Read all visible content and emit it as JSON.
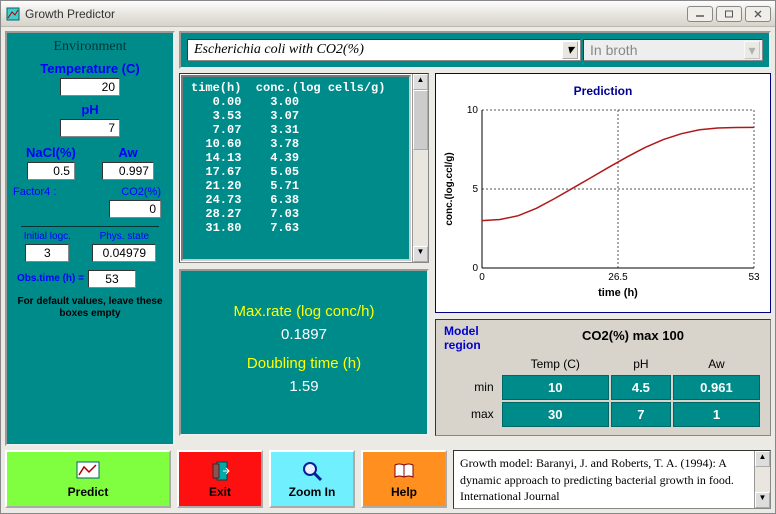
{
  "window": {
    "title": "Growth Predictor"
  },
  "dropdowns": {
    "organism": "Escherichia coli with CO2(%)",
    "medium": "In broth"
  },
  "environment": {
    "heading": "Environment",
    "temperature": {
      "label": "Temperature (C)",
      "value": "20"
    },
    "ph": {
      "label": "pH",
      "value": "7"
    },
    "nacl": {
      "label": "NaCl(%)",
      "value": "0.5"
    },
    "aw": {
      "label": "Aw",
      "value": "0.997"
    },
    "factor4": {
      "label": "Factor4 :",
      "sublabel": "CO2(%)",
      "value": "0"
    },
    "initial_logc": {
      "label": "Initial logc.",
      "value": "3"
    },
    "phys_state": {
      "label": "Phys. state",
      "value": "0.04979"
    },
    "obs_time": {
      "label": "Obs.time (h) =",
      "value": "53"
    },
    "note": "For default values, leave these boxes empty"
  },
  "data_table": {
    "headers": [
      "time(h)",
      "conc.(log cells/g)"
    ],
    "rows": [
      [
        "0.00",
        "3.00"
      ],
      [
        "3.53",
        "3.07"
      ],
      [
        "7.07",
        "3.31"
      ],
      [
        "10.60",
        "3.78"
      ],
      [
        "14.13",
        "4.39"
      ],
      [
        "17.67",
        "5.05"
      ],
      [
        "21.20",
        "5.71"
      ],
      [
        "24.73",
        "6.38"
      ],
      [
        "28.27",
        "7.03"
      ],
      [
        "31.80",
        "7.63"
      ]
    ]
  },
  "rates": {
    "maxrate_label": "Max.rate (log conc/h)",
    "maxrate_value": "0.1897",
    "doubling_label": "Doubling time (h)",
    "doubling_value": "1.59"
  },
  "chart": {
    "title": "Prediction",
    "xlabel": "time (h)",
    "ylabel": "conc.(log.ccl/g)",
    "xlim": [
      0,
      53
    ],
    "xticks": [
      0,
      26.5,
      53
    ],
    "ylim": [
      0,
      10
    ],
    "yticks": [
      0,
      5,
      10
    ],
    "title_color": "#000090",
    "axis_color": "#000000",
    "grid_color": "#555555",
    "line_color": "#b01818",
    "background_color": "#ffffff",
    "grid_dash": "2,2",
    "line_width": 1.5,
    "curve_points": [
      [
        0,
        3.0
      ],
      [
        3.53,
        3.07
      ],
      [
        7.07,
        3.31
      ],
      [
        10.6,
        3.78
      ],
      [
        14.13,
        4.39
      ],
      [
        17.67,
        5.05
      ],
      [
        21.2,
        5.71
      ],
      [
        24.73,
        6.38
      ],
      [
        28.27,
        7.03
      ],
      [
        31.8,
        7.63
      ],
      [
        35.33,
        8.13
      ],
      [
        38.86,
        8.5
      ],
      [
        42.4,
        8.75
      ],
      [
        45.93,
        8.86
      ],
      [
        49.46,
        8.89
      ],
      [
        53,
        8.9
      ]
    ]
  },
  "model_region": {
    "header": "Model region",
    "co2_label": "CO2(%) max 100",
    "columns": [
      "Temp (C)",
      "pH",
      "Aw"
    ],
    "min_label": "min",
    "max_label": "max",
    "min": [
      "10",
      "4.5",
      "0.961"
    ],
    "max": [
      "30",
      "7",
      "1"
    ],
    "cell_bg": "#008b8b",
    "cell_fg": "#ffffff"
  },
  "buttons": {
    "predict": "Predict",
    "exit": "Exit",
    "zoom": "Zoom In",
    "help": "Help"
  },
  "citation": "Growth model:  Baranyi, J. and Roberts, T. A. (1994):  A dynamic approach to predicting bacterial growth in food.    International Journal",
  "colors": {
    "teal": "#008b8b",
    "panel_bg": "#eceae5",
    "predict_btn": "#80ff40",
    "exit_btn": "#ff1010",
    "zoom_btn": "#70f0ff",
    "help_btn": "#ff9020"
  }
}
